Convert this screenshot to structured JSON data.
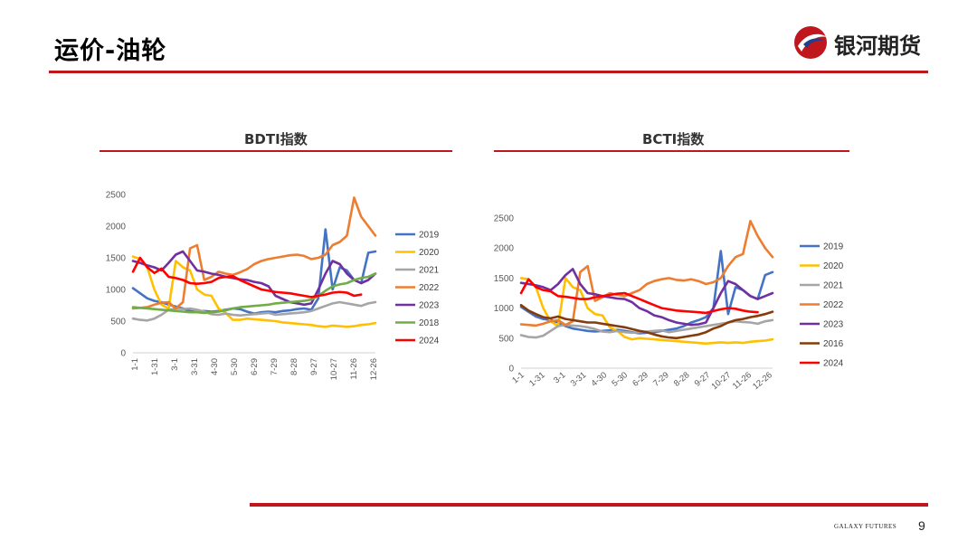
{
  "header": {
    "title": "运价-油轮"
  },
  "logo": {
    "text": "银河期货",
    "accent": "#c0161e",
    "secondary": "#1f3f8f"
  },
  "footer": {
    "brand": "GALAXY FUTURES",
    "page_number": "9",
    "rule_color": "#c0161e"
  },
  "chart_data": [
    {
      "type": "line",
      "title": "BDTI指数",
      "x_tick_labels": [
        "1-1",
        "1-31",
        "3-1",
        "3-31",
        "4-30",
        "5-30",
        "6-29",
        "7-29",
        "8-28",
        "9-27",
        "10-27",
        "11-26",
        "12-26"
      ],
      "ylim": [
        0,
        2500
      ],
      "y_ticks": [
        0,
        500,
        1000,
        1500,
        2000,
        2500
      ],
      "legend_position": "right",
      "series": [
        {
          "name": "2019",
          "color": "#4472c4",
          "values": [
            1020,
            940,
            860,
            820,
            800,
            760,
            730,
            700,
            660,
            640,
            660,
            650,
            660,
            680,
            700,
            690,
            650,
            620,
            640,
            650,
            640,
            660,
            670,
            690,
            700,
            680,
            860,
            1950,
            1000,
            1350,
            1300,
            1150,
            1100,
            1580,
            1600
          ]
        },
        {
          "name": "2020",
          "color": "#ffc000",
          "values": [
            1520,
            1480,
            1350,
            1000,
            760,
            700,
            1450,
            1350,
            1300,
            1000,
            920,
            900,
            700,
            630,
            520,
            520,
            540,
            530,
            520,
            510,
            500,
            480,
            470,
            460,
            450,
            440,
            420,
            410,
            430,
            420,
            410,
            420,
            440,
            450,
            470
          ]
        },
        {
          "name": "2021",
          "color": "#a5a5a5",
          "values": [
            540,
            520,
            510,
            540,
            600,
            680,
            700,
            690,
            700,
            680,
            650,
            610,
            600,
            620,
            600,
            590,
            600,
            610,
            620,
            630,
            600,
            610,
            620,
            630,
            640,
            660,
            700,
            740,
            780,
            800,
            780,
            760,
            740,
            780,
            800
          ]
        },
        {
          "name": "2022",
          "color": "#ed7d31",
          "values": [
            700,
            710,
            720,
            760,
            790,
            800,
            700,
            800,
            1650,
            1700,
            1150,
            1200,
            1280,
            1250,
            1230,
            1270,
            1320,
            1400,
            1450,
            1480,
            1500,
            1520,
            1540,
            1550,
            1530,
            1480,
            1500,
            1550,
            1700,
            1750,
            1850,
            2450,
            2150,
            2000,
            1850
          ]
        },
        {
          "name": "2023",
          "color": "#7030a0",
          "values": [
            1450,
            1420,
            1380,
            1350,
            1300,
            1420,
            1550,
            1600,
            1450,
            1300,
            1280,
            1250,
            1230,
            1200,
            1180,
            1160,
            1150,
            1120,
            1100,
            1050,
            900,
            850,
            800,
            780,
            760,
            780,
            1000,
            1250,
            1450,
            1400,
            1250,
            1150,
            1100,
            1150,
            1250
          ]
        },
        {
          "name": "2018",
          "color": "#70ad47",
          "values": [
            720,
            710,
            700,
            690,
            680,
            670,
            660,
            650,
            640,
            640,
            630,
            640,
            650,
            670,
            700,
            720,
            730,
            740,
            750,
            760,
            780,
            790,
            800,
            810,
            820,
            840,
            900,
            980,
            1050,
            1080,
            1100,
            1150,
            1180,
            1200,
            1250
          ]
        },
        {
          "name": "2024",
          "color": "#ff0000",
          "values": [
            1280,
            1500,
            1350,
            1260,
            1330,
            1200,
            1180,
            1150,
            1100,
            1090,
            1100,
            1120,
            1180,
            1200,
            1210,
            1150,
            1100,
            1050,
            1000,
            980,
            960,
            950,
            940,
            920,
            900,
            880,
            900,
            920,
            950,
            960,
            950,
            900,
            920
          ]
        }
      ]
    },
    {
      "type": "line",
      "title": "BCTI指数",
      "x_tick_labels": [
        "1-1",
        "1-31",
        "3-1",
        "3-31",
        "4-30",
        "5-30",
        "6-29",
        "7-29",
        "8-28",
        "9-27",
        "10-27",
        "11-26",
        "12-26"
      ],
      "ylim": [
        0,
        2500
      ],
      "y_ticks": [
        0,
        500,
        1000,
        1500,
        2000,
        2500
      ],
      "legend_position": "right",
      "series": [
        {
          "name": "2019",
          "color": "#4472c4",
          "values": [
            1020,
            940,
            860,
            820,
            800,
            760,
            700,
            660,
            640,
            620,
            610,
            620,
            630,
            640,
            620,
            600,
            580,
            590,
            600,
            620,
            640,
            660,
            700,
            760,
            800,
            850,
            1000,
            1950,
            900,
            1350,
            1300,
            1200,
            1150,
            1550,
            1600
          ]
        },
        {
          "name": "2020",
          "color": "#ffc000",
          "values": [
            1500,
            1480,
            1350,
            1000,
            780,
            700,
            1500,
            1350,
            1300,
            1000,
            900,
            880,
            680,
            620,
            520,
            480,
            500,
            490,
            480,
            470,
            460,
            450,
            440,
            430,
            420,
            410,
            420,
            430,
            420,
            430,
            420,
            440,
            450,
            460,
            480
          ]
        },
        {
          "name": "2021",
          "color": "#a5a5a5",
          "values": [
            550,
            520,
            510,
            540,
            620,
            700,
            720,
            710,
            700,
            680,
            650,
            610,
            600,
            620,
            600,
            590,
            600,
            610,
            620,
            630,
            600,
            620,
            640,
            660,
            680,
            700,
            720,
            740,
            760,
            780,
            770,
            760,
            740,
            780,
            800
          ]
        },
        {
          "name": "2022",
          "color": "#ed7d31",
          "values": [
            730,
            720,
            710,
            740,
            780,
            800,
            720,
            780,
            1600,
            1700,
            1120,
            1180,
            1250,
            1220,
            1200,
            1250,
            1300,
            1400,
            1450,
            1480,
            1500,
            1470,
            1460,
            1480,
            1450,
            1400,
            1430,
            1500,
            1700,
            1850,
            1900,
            2450,
            2200,
            2000,
            1850
          ]
        },
        {
          "name": "2023",
          "color": "#7030a0",
          "values": [
            1420,
            1400,
            1380,
            1350,
            1300,
            1400,
            1550,
            1650,
            1400,
            1250,
            1230,
            1200,
            1180,
            1160,
            1150,
            1100,
            1000,
            950,
            880,
            850,
            800,
            760,
            740,
            720,
            730,
            760,
            1000,
            1250,
            1450,
            1400,
            1300,
            1200,
            1150,
            1200,
            1250
          ]
        },
        {
          "name": "2016",
          "color": "#843c0c",
          "values": [
            1050,
            960,
            900,
            850,
            830,
            860,
            820,
            800,
            780,
            760,
            760,
            740,
            720,
            700,
            680,
            650,
            620,
            600,
            560,
            530,
            510,
            500,
            520,
            540,
            560,
            600,
            660,
            700,
            760,
            800,
            820,
            850,
            870,
            900,
            940
          ]
        },
        {
          "name": "2024",
          "color": "#ff0000",
          "values": [
            1250,
            1480,
            1350,
            1300,
            1280,
            1200,
            1190,
            1170,
            1150,
            1150,
            1180,
            1200,
            1220,
            1240,
            1250,
            1200,
            1150,
            1100,
            1050,
            1000,
            980,
            960,
            950,
            940,
            930,
            920,
            950,
            980,
            1000,
            990,
            960,
            940,
            930
          ]
        }
      ]
    }
  ]
}
